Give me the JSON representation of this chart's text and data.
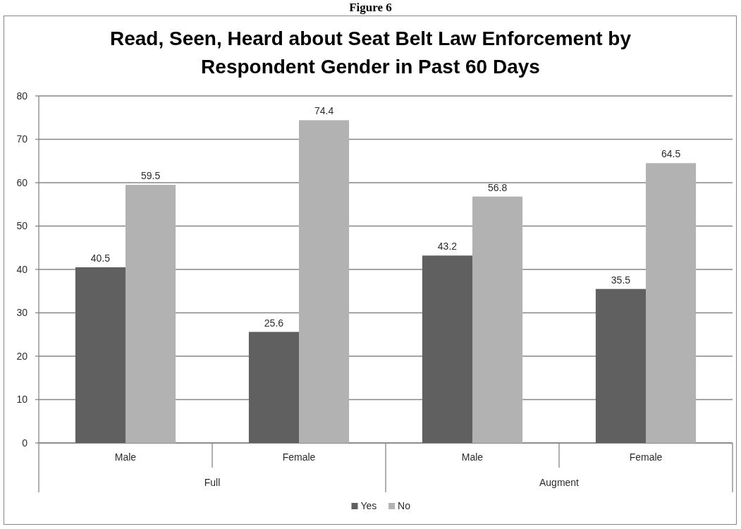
{
  "chart_data": {
    "type": "bar",
    "title": "Read, Seen, Heard about Seat Belt Law Enforcement by\nRespondent Gender in Past 60 Days",
    "annotations": [
      "Figure 6",
      "Full",
      "Augment"
    ],
    "categories": [
      "Male",
      "Female",
      "Male",
      "Female"
    ],
    "series": [
      {
        "name": "Yes",
        "color": "#606060",
        "values": [
          40.5,
          25.6,
          43.2,
          35.5
        ]
      },
      {
        "name": "No",
        "color": "#b2b2b2",
        "values": [
          59.5,
          74.4,
          56.8,
          64.5
        ]
      }
    ],
    "ylim": [
      0,
      80
    ],
    "yticks": [
      0,
      10,
      20,
      30,
      40,
      50,
      60,
      70,
      80
    ],
    "grid": "y",
    "legend": "bottom",
    "data_labels": true
  }
}
